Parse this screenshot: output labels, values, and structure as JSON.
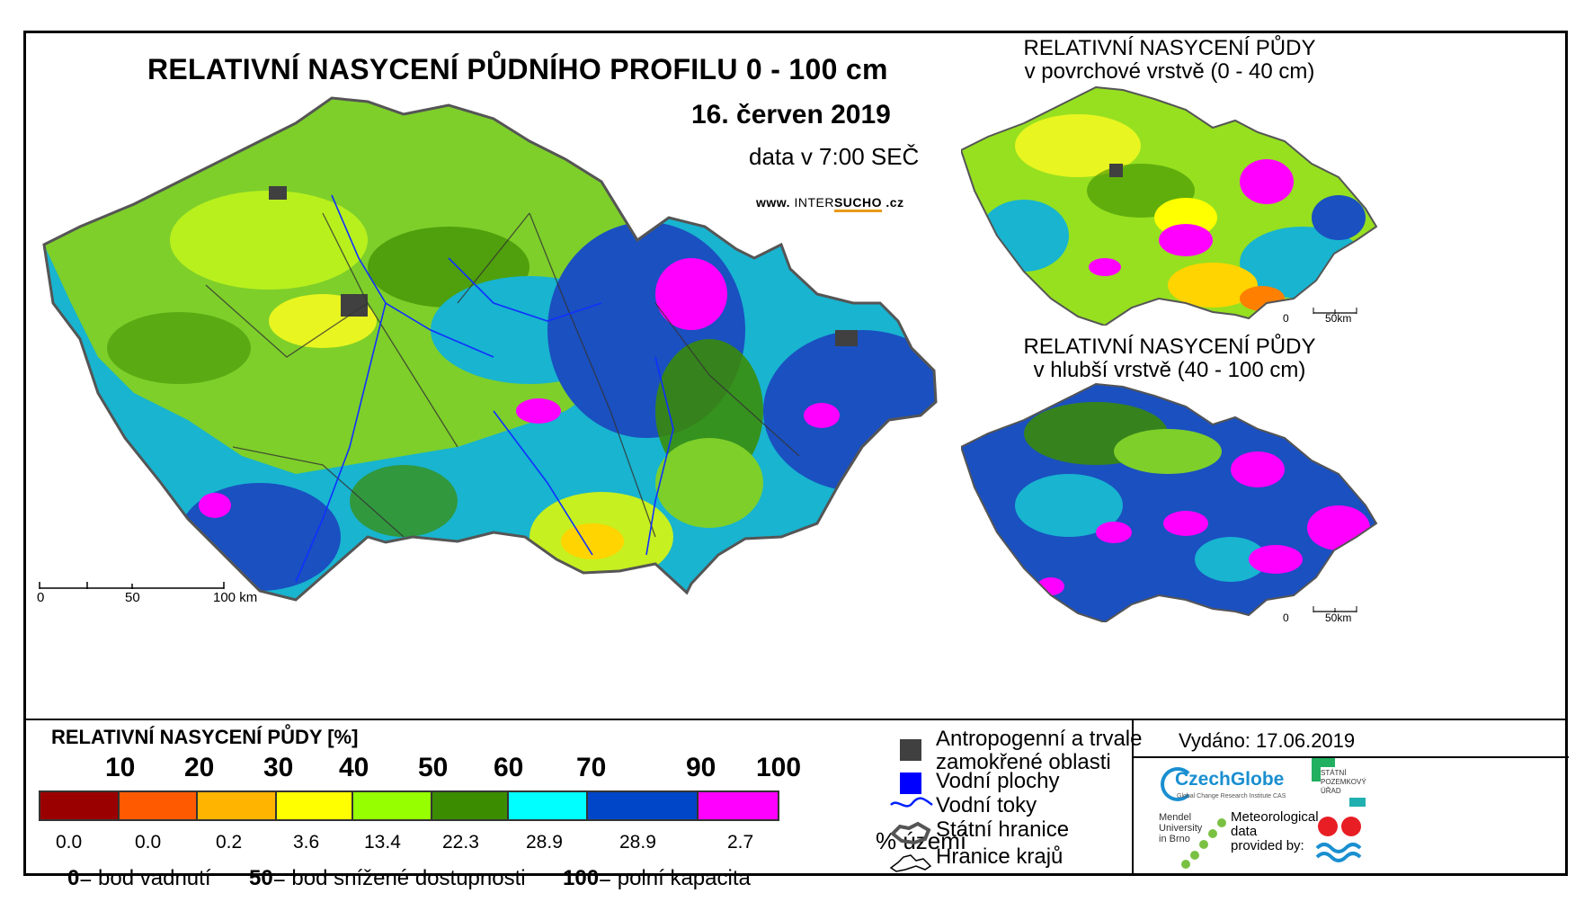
{
  "main_map": {
    "title": "RELATIVNÍ NASYCENÍ PŮDNÍHO PROFILU 0 - 100 cm",
    "date": "16. červen 2019",
    "time": "data v 7:00 SEČ",
    "url_prefix": "www.",
    "url_brand_a": "INTER",
    "url_brand_b": "SUCHO",
    "url_suffix": ".cz",
    "scale": [
      "0",
      "50",
      "100 km"
    ]
  },
  "surface_map": {
    "title_line1": "RELATIVNÍ NASYCENÍ PŮDY",
    "title_line2": "v povrchové vrstvě (0 - 40 cm)",
    "scale": [
      "0",
      "50km"
    ]
  },
  "deep_map": {
    "title_line1": "RELATIVNÍ NASYCENÍ PŮDY",
    "title_line2": "v hlubší vrstvě (40 - 100 cm)",
    "scale": [
      "0",
      "50km"
    ]
  },
  "legend": {
    "title": "RELATIVNÍ NASYCENÍ PŮDY [%]",
    "thresholds": [
      "10",
      "20",
      "30",
      "40",
      "50",
      "60",
      "70",
      "90",
      "100"
    ],
    "classes": [
      {
        "color": "#9b0000",
        "percent": "0.0"
      },
      {
        "color": "#ff5a00",
        "percent": "0.0"
      },
      {
        "color": "#ffb400",
        "percent": "0.2"
      },
      {
        "color": "#ffff00",
        "percent": "3.6"
      },
      {
        "color": "#96ff00",
        "percent": "13.4"
      },
      {
        "color": "#3c8c00",
        "percent": "22.3"
      },
      {
        "color": "#00ffff",
        "percent": "28.9"
      },
      {
        "color": "#0046c8",
        "percent": "28.9"
      },
      {
        "color": "#ff00ff",
        "percent": "2.7"
      }
    ],
    "percent_unit": "% území",
    "definitions": [
      {
        "value": "0",
        "text": "= bod vadnutí"
      },
      {
        "value": "50",
        "text": "= bod snížené dostupnosti"
      },
      {
        "value": "100",
        "text": "= polní kapacita"
      }
    ]
  },
  "symbols": {
    "anthropogenic_line1": "Antropogenní a trvale",
    "anthropogenic_line2": "zamokřené oblasti",
    "anthropogenic_color": "#404040",
    "water_bodies": "Vodní plochy",
    "water_bodies_color": "#0000ff",
    "rivers": "Vodní toky",
    "border": "Státní hranice",
    "regions": "Hranice krajů"
  },
  "issued": "Vydáno: 17.06.2019",
  "logos": {
    "czechglobe": "CzechGlobe",
    "czechglobe_sub": "Global Change Research Institute CAS",
    "mendel": [
      "Mendel",
      "University",
      "in Brno"
    ],
    "meteo": [
      "Meteorological",
      "data",
      "provided by:"
    ],
    "spu": [
      "STÁTNÍ",
      "POZEMKOVÝ",
      "ÚŘAD"
    ]
  }
}
